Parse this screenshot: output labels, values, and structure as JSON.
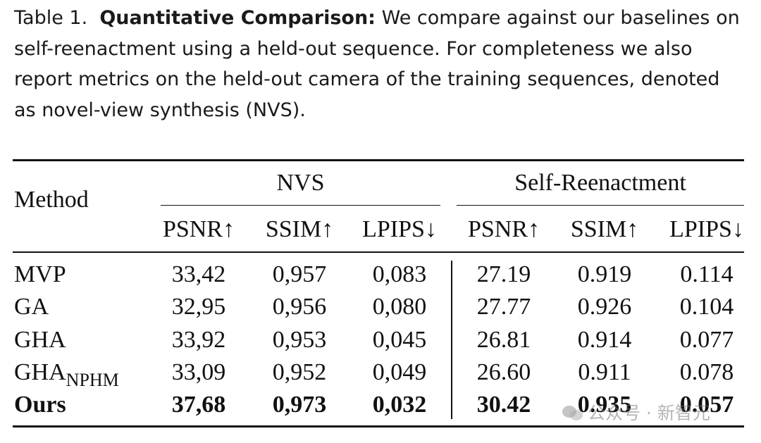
{
  "caption": {
    "lead": "Table 1.",
    "bold": "Quantitative Comparison:",
    "text": "We compare against our baselines on self-reenactment using a held-out sequence. For completeness we also report metrics on the held-out camera of the training sequences, denoted as novel-view synthesis (NVS)."
  },
  "table": {
    "method_header": "Method",
    "groups": [
      "NVS",
      "Self-Reenactment"
    ],
    "metrics": [
      "PSNR↑",
      "SSIM↑",
      "LPIPS↓",
      "PSNR↑",
      "SSIM↑",
      "LPIPS↓"
    ],
    "rows": [
      {
        "method": "MVP",
        "values": [
          "33,42",
          "0,957",
          "0,083",
          "27.19",
          "0.919",
          "0.114"
        ]
      },
      {
        "method": "GA",
        "values": [
          "32,95",
          "0,956",
          "0,080",
          "27.77",
          "0.926",
          "0.104"
        ]
      },
      {
        "method": "GHA",
        "values": [
          "33,92",
          "0,953",
          "0,045",
          "26.81",
          "0.914",
          "0.077"
        ]
      },
      {
        "method": "GHA",
        "method_sub": "NPHM",
        "values": [
          "33,09",
          "0,952",
          "0,049",
          "26.60",
          "0.911",
          "0.078"
        ]
      },
      {
        "method": "Ours",
        "values": [
          "37,68",
          "0,973",
          "0,032",
          "30.42",
          "0.935",
          "0.057"
        ]
      }
    ]
  },
  "watermark": {
    "icon": "wechat-icon",
    "text": "公众号 · 新智元"
  }
}
